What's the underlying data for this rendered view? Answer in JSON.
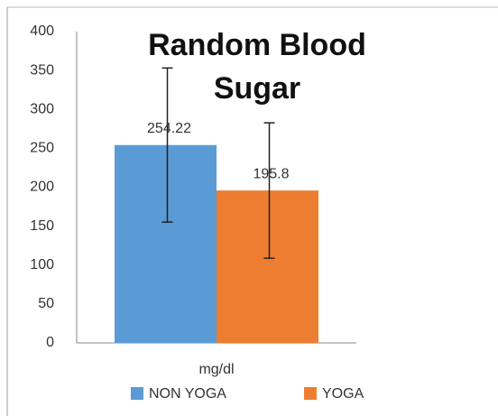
{
  "chart_data": {
    "type": "bar",
    "title": "Random Blood Sugar",
    "categories": [
      "mg/dl"
    ],
    "series": [
      {
        "name": "NON YOGA",
        "color": "#5b9bd5",
        "values": [
          254.22
        ],
        "errors": [
          99
        ]
      },
      {
        "name": "YOGA",
        "color": "#ed7d31",
        "values": [
          195.8
        ],
        "errors": [
          87
        ]
      }
    ],
    "ylim": [
      0,
      400
    ],
    "yticks": [
      0,
      50,
      100,
      150,
      200,
      250,
      300,
      350,
      400
    ],
    "grid": false,
    "legend": "bottom"
  }
}
